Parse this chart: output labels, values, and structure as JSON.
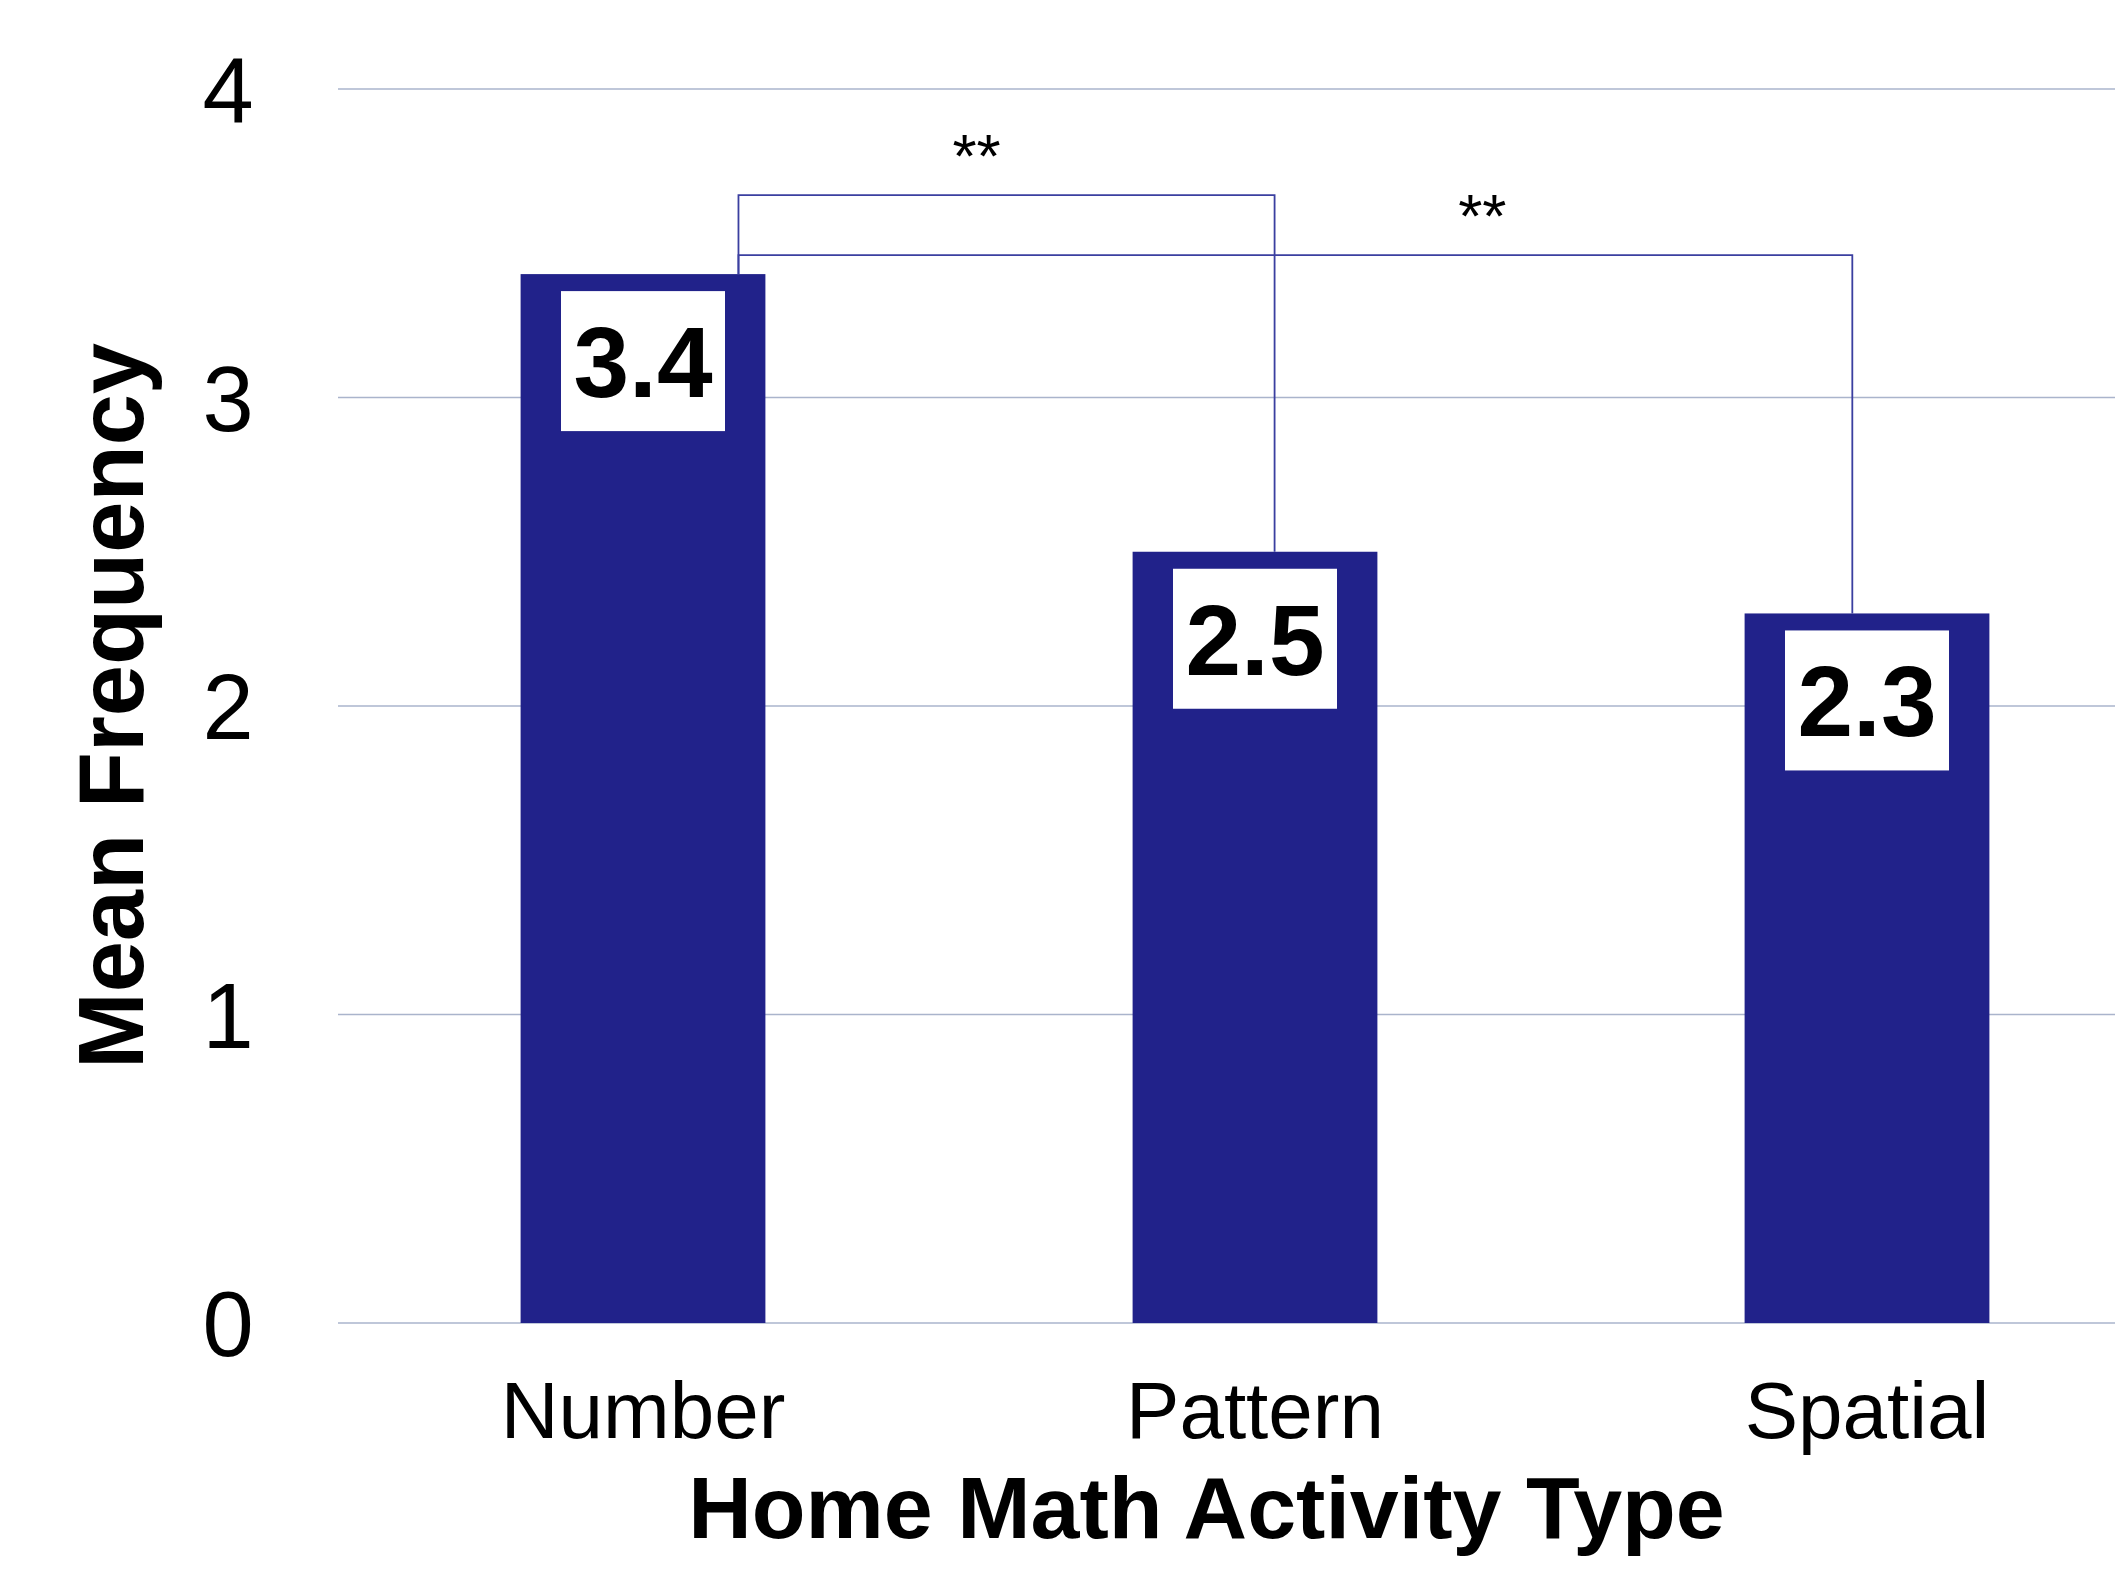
{
  "chart_data": {
    "type": "bar",
    "xlabel": "Home Math Activity Type",
    "ylabel": "Mean Frequency",
    "categories": [
      "Number",
      "Pattern",
      "Spatial"
    ],
    "values": [
      3.4,
      2.5,
      2.3
    ],
    "color": "#21228a",
    "ylim": [
      0,
      4
    ],
    "yticks": [
      0,
      1,
      2,
      3,
      4
    ],
    "grid": "y",
    "data_labels": true,
    "annotations": [
      "**",
      "**"
    ]
  }
}
